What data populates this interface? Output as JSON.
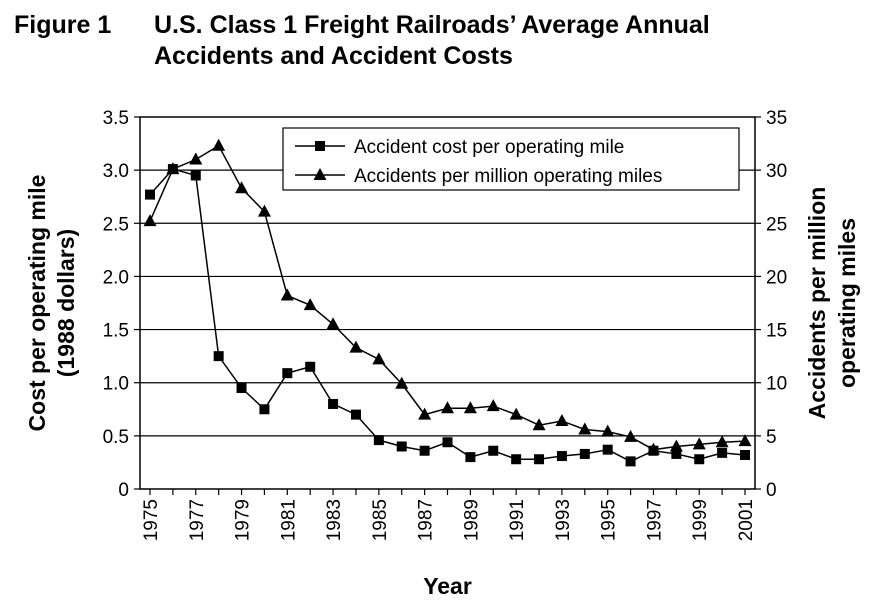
{
  "figure": {
    "number": "Figure 1",
    "title_line1": "U.S. Class 1 Freight Railroads’ Average Annual",
    "title_line2": "Accidents and Accident Costs"
  },
  "chart_data": {
    "type": "line",
    "x": [
      1975,
      1976,
      1977,
      1978,
      1979,
      1980,
      1981,
      1982,
      1983,
      1984,
      1985,
      1986,
      1987,
      1988,
      1989,
      1990,
      1991,
      1992,
      1993,
      1994,
      1995,
      1996,
      1997,
      1998,
      1999,
      2000,
      2001
    ],
    "x_tick_labels": [
      "1975",
      "1977",
      "1979",
      "1981",
      "1983",
      "1985",
      "1987",
      "1989",
      "1991",
      "1993",
      "1995",
      "1997",
      "1999",
      "2001"
    ],
    "xlabel": "Year",
    "ylabel_left_line1": "Cost per operating mile",
    "ylabel_left_line2": "(1988 dollars)",
    "ylabel_right_line1": "Accidents per million",
    "ylabel_right_line2": "operating miles",
    "ylim_left": [
      0,
      3.5
    ],
    "ylim_right": [
      0,
      35
    ],
    "y_left_ticks": [
      "0",
      "0.5",
      "1.0",
      "1.5",
      "2.0",
      "2.5",
      "3.0",
      "3.5"
    ],
    "y_right_ticks": [
      "0",
      "5",
      "10",
      "15",
      "20",
      "25",
      "30",
      "35"
    ],
    "grid": "horizontal",
    "legend_position": "top-right",
    "series": [
      {
        "name": "Accident cost per operating mile",
        "axis": "left",
        "marker": "square",
        "values": [
          2.77,
          3.01,
          2.95,
          1.25,
          0.95,
          0.75,
          1.09,
          1.15,
          0.8,
          0.7,
          0.46,
          0.4,
          0.36,
          0.44,
          0.3,
          0.36,
          0.28,
          0.28,
          0.31,
          0.33,
          0.37,
          0.26,
          0.36,
          0.33,
          0.28,
          0.34,
          0.32
        ]
      },
      {
        "name": "Accidents per million operating miles",
        "axis": "right",
        "marker": "triangle",
        "values": [
          25.2,
          30.1,
          31.0,
          32.3,
          28.3,
          26.1,
          18.2,
          17.3,
          15.5,
          13.3,
          12.2,
          9.9,
          7.0,
          7.6,
          7.6,
          7.8,
          7.0,
          6.0,
          6.4,
          5.6,
          5.4,
          4.9,
          3.7,
          4.0,
          4.2,
          4.4,
          4.5
        ]
      }
    ]
  }
}
